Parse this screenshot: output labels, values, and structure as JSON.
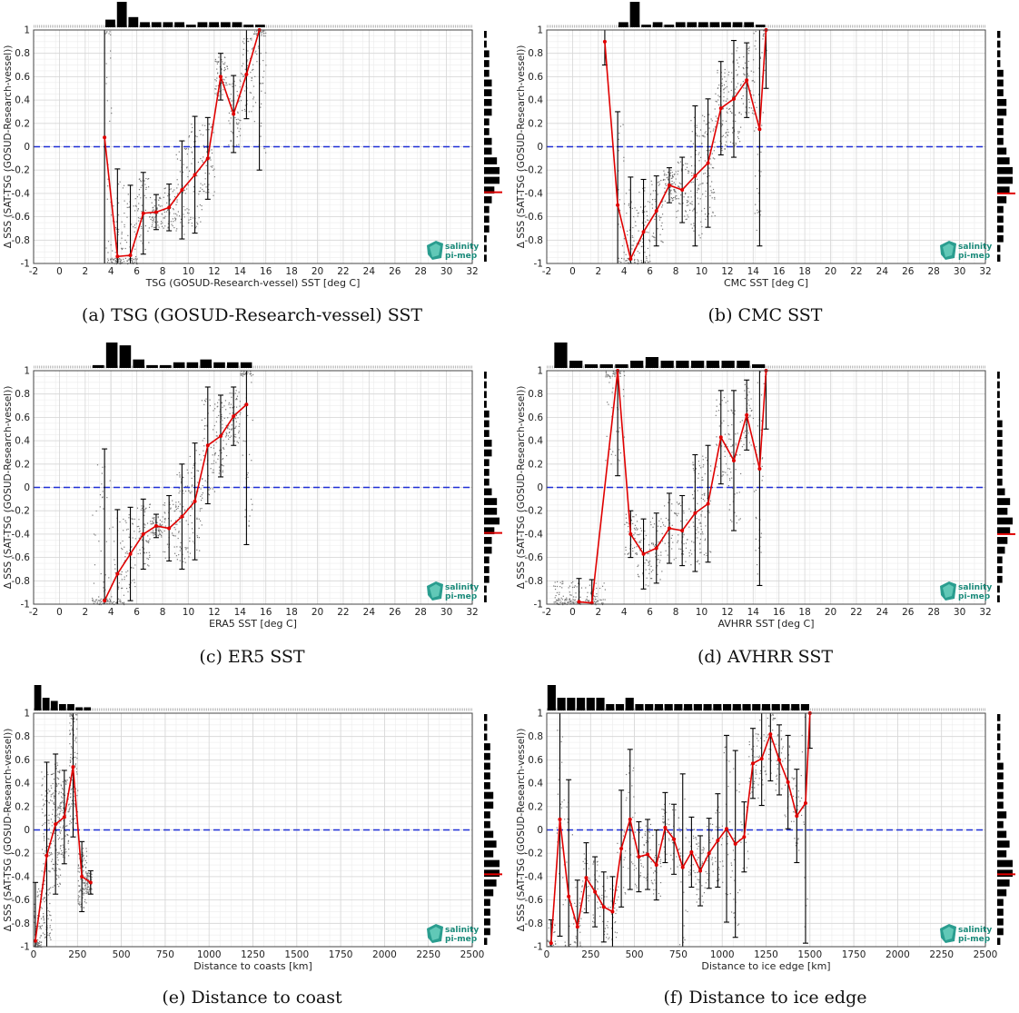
{
  "logo": {
    "line1": "salinity",
    "line2": "pi-mep"
  },
  "colors": {
    "red": "#e00000",
    "blue": "#1f2fd6",
    "bar": "#000000",
    "grid": "#d6d6d6",
    "scatter": "#777777"
  },
  "chart_data": [
    {
      "id": "a",
      "type": "line",
      "caption": "(a) TSG (GOSUD-Research-vessel) SST",
      "xlabel": "TSG (GOSUD-Research-vessel) SST [deg C]",
      "ylabel": "Δ SSS (SAT-TSG (GOSUD-Research-vessel))",
      "xlim": [
        -2,
        32
      ],
      "ylim": [
        -1,
        1
      ],
      "xticks": [
        -2,
        0,
        2,
        4,
        6,
        8,
        10,
        12,
        14,
        16,
        18,
        20,
        22,
        24,
        26,
        28,
        30,
        32
      ],
      "xticklabels": [
        "-2",
        "0",
        "2",
        "4",
        "6",
        "8",
        "10",
        "12",
        "14",
        "16",
        "18",
        "20",
        "22",
        "24",
        "26",
        "28",
        "30",
        "32"
      ],
      "yticks": [
        -1,
        -0.8,
        -0.6,
        -0.4,
        -0.2,
        0,
        0.2,
        0.4,
        0.6,
        0.8,
        1
      ],
      "yticklabels": [
        "-1",
        "-0.8",
        "-0.6",
        "-0.4",
        "-0.2",
        "0",
        "0.2",
        "0.4",
        "0.6",
        "0.8",
        "1"
      ],
      "x": [
        3.5,
        4.5,
        5.5,
        6.5,
        7.5,
        8.5,
        9.5,
        10.5,
        11.5,
        12.5,
        13.5,
        14.5,
        15.5
      ],
      "y": [
        0.08,
        -0.94,
        -0.93,
        -0.57,
        -0.56,
        -0.52,
        -0.37,
        -0.24,
        -0.1,
        0.6,
        0.28,
        0.62,
        1.0
      ],
      "err": [
        1.5,
        0.75,
        0.6,
        0.35,
        0.15,
        0.2,
        0.42,
        0.5,
        0.35,
        0.2,
        0.33,
        0.38,
        1.2
      ],
      "scatter_x": [
        3.5,
        16
      ],
      "hist_top": [
        3,
        10,
        4,
        2,
        2,
        2,
        2,
        1,
        2,
        2,
        2,
        2,
        1,
        1
      ],
      "hist_right": [
        1,
        1,
        2,
        2,
        2,
        3,
        3,
        3,
        3,
        2,
        2,
        3,
        3,
        5,
        6,
        6,
        4,
        3,
        2,
        2,
        2,
        1,
        1,
        1
      ],
      "hist_right_mean": -0.39
    },
    {
      "id": "b",
      "type": "line",
      "caption": "(b) CMC SST",
      "xlabel": "CMC SST [deg C]",
      "ylabel": "Δ SSS (SAT-TSG (GOSUD-Research-vessel))",
      "xlim": [
        -2,
        32
      ],
      "ylim": [
        -1,
        1
      ],
      "xticks": [
        -2,
        0,
        2,
        4,
        6,
        8,
        10,
        12,
        14,
        16,
        18,
        20,
        22,
        24,
        26,
        28,
        30,
        32
      ],
      "xticklabels": [
        "-2",
        "0",
        "2",
        "4",
        "6",
        "8",
        "10",
        "12",
        "14",
        "16",
        "18",
        "20",
        "22",
        "24",
        "26",
        "28",
        "30",
        "32"
      ],
      "yticks": [
        -1,
        -0.8,
        -0.6,
        -0.4,
        -0.2,
        0,
        0.2,
        0.4,
        0.6,
        0.8,
        1
      ],
      "yticklabels": [
        "-1",
        "-0.8",
        "-0.6",
        "-0.4",
        "-0.2",
        "0",
        "0.2",
        "0.4",
        "0.6",
        "0.8",
        "1"
      ],
      "x": [
        2.5,
        3.5,
        4.5,
        5.5,
        6.5,
        7.5,
        8.5,
        9.5,
        10.5,
        11.5,
        12.5,
        13.5,
        14.5,
        15.0
      ],
      "y": [
        0.9,
        -0.5,
        -0.96,
        -0.73,
        -0.55,
        -0.33,
        -0.37,
        -0.25,
        -0.14,
        0.33,
        0.41,
        0.57,
        0.15,
        1.0
      ],
      "err": [
        0.2,
        0.8,
        0.7,
        0.45,
        0.3,
        0.15,
        0.28,
        0.6,
        0.55,
        0.4,
        0.5,
        0.32,
        1.0,
        0.5
      ],
      "scatter_x": [
        3.5,
        15
      ],
      "hist_top": [
        2,
        10,
        1,
        2,
        1,
        2,
        2,
        2,
        2,
        2,
        2,
        2,
        1
      ],
      "hist_right": [
        1,
        1,
        1,
        1,
        2,
        2,
        2,
        3,
        3,
        2,
        2,
        2,
        3,
        4,
        5,
        5,
        4,
        3,
        2,
        2,
        2,
        2,
        1,
        1
      ],
      "hist_right_mean": -0.4
    },
    {
      "id": "c",
      "type": "line",
      "caption": "(c) ER5 SST",
      "xlabel": "ERA5 SST [deg C]",
      "ylabel": "Δ SSS (SAT-TSG (GOSUD-Research-vessel))",
      "xlim": [
        -2,
        32
      ],
      "ylim": [
        -1,
        1
      ],
      "xticks": [
        -2,
        0,
        2,
        4,
        6,
        8,
        10,
        12,
        14,
        16,
        18,
        20,
        22,
        24,
        26,
        28,
        30,
        32
      ],
      "xticklabels": [
        "-2",
        "0",
        "2",
        "4",
        "6",
        "8",
        "10",
        "12",
        "14",
        "16",
        "18",
        "20",
        "22",
        "24",
        "26",
        "28",
        "30",
        "32"
      ],
      "yticks": [
        -1,
        -0.8,
        -0.6,
        -0.4,
        -0.2,
        0,
        0.2,
        0.4,
        0.6,
        0.8,
        1
      ],
      "yticklabels": [
        "-1",
        "-0.8",
        "-0.6",
        "-0.4",
        "-0.2",
        "0",
        "0.2",
        "0.4",
        "0.6",
        "0.8",
        "1"
      ],
      "x": [
        3.5,
        4.5,
        5.5,
        6.5,
        7.5,
        8.5,
        9.5,
        10.5,
        11.5,
        12.5,
        13.5,
        14.5
      ],
      "y": [
        -0.97,
        -0.74,
        -0.57,
        -0.4,
        -0.33,
        -0.35,
        -0.25,
        -0.12,
        0.36,
        0.44,
        0.61,
        0.71
      ],
      "err": [
        1.3,
        0.55,
        0.4,
        0.3,
        0.1,
        0.28,
        0.45,
        0.5,
        0.5,
        0.35,
        0.25,
        1.2
      ],
      "scatter_x": [
        2.5,
        15
      ],
      "hist_top": [
        1,
        9,
        8,
        3,
        1,
        1,
        2,
        2,
        3,
        2,
        2,
        2
      ],
      "hist_right": [
        1,
        1,
        1,
        1,
        2,
        2,
        2,
        3,
        3,
        2,
        2,
        2,
        3,
        5,
        5,
        6,
        4,
        3,
        3,
        2,
        2,
        2,
        1,
        1
      ],
      "hist_right_mean": -0.39
    },
    {
      "id": "d",
      "type": "line",
      "caption": "(d) AVHRR SST",
      "xlabel": "AVHRR SST [deg C]",
      "ylabel": "Δ SSS (SAT-TSG (GOSUD-Research-vessel))",
      "xlim": [
        -2,
        32
      ],
      "ylim": [
        -1,
        1
      ],
      "xticks": [
        -2,
        0,
        2,
        4,
        6,
        8,
        10,
        12,
        14,
        16,
        18,
        20,
        22,
        24,
        26,
        28,
        30,
        32
      ],
      "xticklabels": [
        "-2",
        "0",
        "2",
        "4",
        "6",
        "8",
        "10",
        "12",
        "14",
        "16",
        "18",
        "20",
        "22",
        "24",
        "26",
        "28",
        "30",
        "32"
      ],
      "yticks": [
        -1,
        -0.8,
        -0.6,
        -0.4,
        -0.2,
        0,
        0.2,
        0.4,
        0.6,
        0.8,
        1
      ],
      "yticklabels": [
        "-1",
        "-0.8",
        "-0.6",
        "-0.4",
        "-0.2",
        "0",
        "0.2",
        "0.4",
        "0.6",
        "0.8",
        "1"
      ],
      "x": [
        0.5,
        1.5,
        3.5,
        4.5,
        5.5,
        6.5,
        7.5,
        8.5,
        9.5,
        10.5,
        11.5,
        12.5,
        13.5,
        14.5,
        15.0
      ],
      "y": [
        -0.98,
        -0.99,
        1.0,
        -0.4,
        -0.57,
        -0.52,
        -0.35,
        -0.37,
        -0.22,
        -0.14,
        0.43,
        0.23,
        0.62,
        0.16,
        1.0
      ],
      "err": [
        0.2,
        0.2,
        0.9,
        0.2,
        0.3,
        0.3,
        0.3,
        0.3,
        0.5,
        0.5,
        0.4,
        0.6,
        0.3,
        1.0,
        0.5
      ],
      "scatter_x": [
        -1.5,
        15
      ],
      "hist_top": [
        7,
        2,
        1,
        1,
        1,
        2,
        3,
        2,
        2,
        2,
        2,
        2,
        2,
        1
      ],
      "hist_right": [
        1,
        1,
        1,
        1,
        1,
        2,
        2,
        2,
        2,
        2,
        2,
        2,
        3,
        5,
        4,
        6,
        5,
        4,
        3,
        2,
        2,
        2,
        1,
        1
      ],
      "hist_right_mean": -0.4
    },
    {
      "id": "e",
      "type": "line",
      "caption": "(e) Distance to coast",
      "xlabel": "Distance to coasts [km]",
      "ylabel": "Δ SSS (SAT-TSG (GOSUD-Research-vessel))",
      "xlim": [
        0,
        2500
      ],
      "ylim": [
        -1,
        1
      ],
      "xticks": [
        0,
        250,
        500,
        750,
        1000,
        1250,
        1500,
        1750,
        2000,
        2250,
        2500
      ],
      "xticklabels": [
        "0",
        "250",
        "500",
        "750",
        "1000",
        "1250",
        "1500",
        "1750",
        "2000",
        "2250",
        "2500"
      ],
      "yticks": [
        -1,
        -0.8,
        -0.6,
        -0.4,
        -0.2,
        0,
        0.2,
        0.4,
        0.6,
        0.8,
        1
      ],
      "yticklabels": [
        "-1",
        "-0.8",
        "-0.6",
        "-0.4",
        "-0.2",
        "0",
        "0.2",
        "0.4",
        "0.6",
        "0.8",
        "1"
      ],
      "x": [
        10,
        75,
        125,
        175,
        225,
        275,
        325
      ],
      "y": [
        -0.95,
        -0.22,
        0.05,
        0.11,
        0.54,
        -0.4,
        -0.45
      ],
      "err": [
        0.5,
        0.8,
        0.6,
        0.4,
        0.6,
        0.3,
        0.1
      ],
      "scatter_x": [
        0,
        330
      ],
      "hist_top": [
        8,
        4,
        3,
        2,
        2,
        1,
        1
      ],
      "hist_right": [
        1,
        1,
        1,
        2,
        2,
        2,
        2,
        2,
        3,
        3,
        2,
        2,
        3,
        4,
        3,
        5,
        5,
        4,
        3,
        2,
        2,
        2,
        2,
        1
      ],
      "hist_right_mean": -0.38
    },
    {
      "id": "f",
      "type": "line",
      "caption": "(f) Distance to ice edge",
      "xlabel": "Distance to ice edge [km]",
      "ylabel": "Δ SSS (SAT-TSG (GOSUD-Research-vessel))",
      "xlim": [
        0,
        2500
      ],
      "ylim": [
        -1,
        1
      ],
      "xticks": [
        0,
        250,
        500,
        750,
        1000,
        1250,
        1500,
        1750,
        2000,
        2250,
        2500
      ],
      "xticklabels": [
        "0",
        "250",
        "500",
        "750",
        "1000",
        "1250",
        "1500",
        "1750",
        "2000",
        "2250",
        "2500"
      ],
      "yticks": [
        -1,
        -0.8,
        -0.6,
        -0.4,
        -0.2,
        0,
        0.2,
        0.4,
        0.6,
        0.8,
        1
      ],
      "yticklabels": [
        "-1",
        "-0.8",
        "-0.6",
        "-0.4",
        "-0.2",
        "0",
        "0.2",
        "0.4",
        "0.6",
        "0.8",
        "1"
      ],
      "x": [
        25,
        75,
        125,
        175,
        225,
        275,
        325,
        375,
        425,
        475,
        525,
        575,
        625,
        675,
        725,
        775,
        825,
        875,
        925,
        975,
        1025,
        1075,
        1125,
        1175,
        1225,
        1275,
        1325,
        1375,
        1425,
        1475,
        1500
      ],
      "y": [
        -0.97,
        0.09,
        -0.57,
        -0.83,
        -0.41,
        -0.53,
        -0.66,
        -0.7,
        -0.16,
        0.09,
        -0.23,
        -0.21,
        -0.3,
        0.02,
        -0.08,
        -0.32,
        -0.19,
        -0.35,
        -0.2,
        -0.09,
        0.01,
        -0.12,
        -0.06,
        0.57,
        0.61,
        0.82,
        0.6,
        0.41,
        0.12,
        0.23,
        1.0
      ],
      "err": [
        0.2,
        1.0,
        1.0,
        0.4,
        0.3,
        0.3,
        0.3,
        0.3,
        0.5,
        0.6,
        0.3,
        0.3,
        0.3,
        0.3,
        0.3,
        0.8,
        0.3,
        0.3,
        0.3,
        0.4,
        0.8,
        0.8,
        0.3,
        0.3,
        0.4,
        0.4,
        0.3,
        0.4,
        0.4,
        1.2,
        0.3
      ],
      "scatter_x": [
        0,
        1500
      ],
      "hist_top": [
        4,
        2,
        2,
        2,
        2,
        2,
        1,
        1,
        2,
        1,
        1,
        1,
        1,
        1,
        1,
        1,
        1,
        1,
        1,
        1,
        1,
        1,
        1,
        1,
        1,
        1,
        1
      ],
      "hist_right": [
        1,
        1,
        1,
        1,
        1,
        2,
        2,
        2,
        2,
        2,
        3,
        2,
        3,
        4,
        3,
        5,
        5,
        4,
        3,
        2,
        2,
        2,
        2,
        1
      ],
      "hist_right_mean": -0.38
    }
  ]
}
